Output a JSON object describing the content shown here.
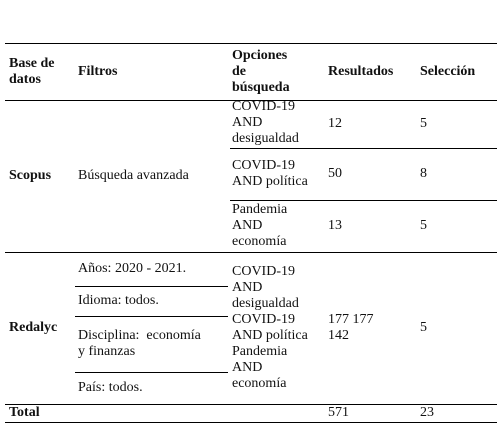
{
  "table": {
    "header": [
      "Base de datos",
      "Filtros",
      "Opciones de búsqueda",
      "Resultados",
      "Selección"
    ],
    "rows": [
      {
        "database": "Scopus",
        "filters": [
          "Búsqueda avanzada"
        ],
        "options": [
          "COVID-19 AND desigualdad",
          "COVID-19 AND política",
          "Pandemia AND economía"
        ],
        "results": [
          "12",
          "50",
          "13"
        ],
        "selection": [
          "5",
          "8",
          "5"
        ]
      },
      {
        "database": "Redalyc",
        "filters": [
          "Años: 2020 - 2021.",
          "Idioma: todos.",
          "Disciplina:  economía y finanzas",
          "País: todos."
        ],
        "options": [
          "COVID-19 AND desigualdad",
          "COVID-19 AND política",
          "Pandemia AND economía"
        ],
        "results": [
          "177 177 142"
        ],
        "selection": [
          "5"
        ]
      }
    ],
    "total": {
      "label": "Total",
      "results": "571",
      "selection": "23"
    }
  }
}
